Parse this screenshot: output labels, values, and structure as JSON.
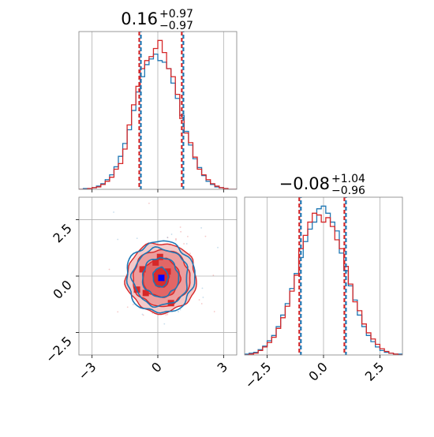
{
  "colors": {
    "series_a": "#1f77b4",
    "series_b": "#d62728",
    "marker_center": "#0000ff",
    "grid": "#b0b0b0",
    "frame": "#000000"
  },
  "chart_data": [
    {
      "type": "histogram",
      "panel": "top-left (x parameter marginal)",
      "title": {
        "value": "0.16",
        "upper": "+0.97",
        "lower": "−0.97"
      },
      "xlim": [
        -3.6,
        3.6
      ],
      "quantile_lines_x": [
        -0.81,
        0.16,
        1.13
      ],
      "grid": true,
      "series": [
        {
          "color": "#1f77b4",
          "bin_edges": [
            -3.6,
            -3.4,
            -3.2,
            -3.0,
            -2.8,
            -2.6,
            -2.4,
            -2.2,
            -2.0,
            -1.8,
            -1.6,
            -1.4,
            -1.2,
            -1.0,
            -0.8,
            -0.6,
            -0.4,
            -0.2,
            0.0,
            0.2,
            0.4,
            0.6,
            0.8,
            1.0,
            1.2,
            1.4,
            1.6,
            1.8,
            2.0,
            2.2,
            2.4,
            2.6,
            2.8,
            3.0,
            3.2,
            3.4,
            3.6
          ],
          "values": [
            0,
            1,
            1,
            2,
            4,
            7,
            12,
            18,
            28,
            41,
            57,
            74,
            98,
            121,
            140,
            155,
            162,
            168,
            160,
            158,
            150,
            132,
            113,
            92,
            72,
            55,
            38,
            27,
            17,
            10,
            6,
            3,
            2,
            1,
            0,
            0
          ]
        },
        {
          "color": "#d62728",
          "bin_edges": [
            -3.6,
            -3.4,
            -3.2,
            -3.0,
            -2.8,
            -2.6,
            -2.4,
            -2.2,
            -2.0,
            -1.8,
            -1.6,
            -1.4,
            -1.2,
            -1.0,
            -0.8,
            -0.6,
            -0.4,
            -0.2,
            0.0,
            0.2,
            0.4,
            0.6,
            0.8,
            1.0,
            1.2,
            1.4,
            1.6,
            1.8,
            2.0,
            2.2,
            2.4,
            2.6,
            2.8,
            3.0,
            3.2,
            3.4,
            3.6
          ],
          "values": [
            0,
            0,
            1,
            2,
            3,
            6,
            10,
            15,
            25,
            32,
            50,
            80,
            105,
            128,
            150,
            160,
            165,
            175,
            185,
            170,
            150,
            140,
            118,
            88,
            70,
            58,
            40,
            25,
            18,
            12,
            7,
            4,
            2,
            1,
            0,
            0
          ]
        }
      ]
    },
    {
      "type": "contour",
      "panel": "bottom-left (joint x vs y)",
      "xlim": [
        -3.6,
        3.6
      ],
      "ylim": [
        -3.5,
        3.5
      ],
      "x_ticks": [
        -3,
        0,
        3
      ],
      "x_tick_labels": [
        "−3",
        "0",
        "3"
      ],
      "y_ticks": [
        -2.5,
        0.0,
        2.5
      ],
      "y_tick_labels": [
        "−2.5",
        "0.0",
        "2.5"
      ],
      "grid": true,
      "levels_sigma_x": [
        0.35,
        0.85,
        1.3,
        1.6
      ],
      "levels_sigma_y": [
        0.42,
        0.85,
        1.25,
        1.55
      ],
      "series": [
        {
          "color": "#1f77b4",
          "center": [
            0.12,
            -0.05
          ],
          "filled": false
        },
        {
          "color": "#d62728",
          "center": [
            0.16,
            -0.08
          ],
          "filled": true
        }
      ],
      "center_marker": {
        "x": 0.16,
        "y": -0.08,
        "color": "#0000ff"
      }
    },
    {
      "type": "histogram",
      "panel": "bottom-right (y parameter marginal)",
      "title": {
        "value": "−0.08",
        "upper": "+1.04",
        "lower": "−0.96"
      },
      "xlim": [
        -3.5,
        3.5
      ],
      "x_ticks": [
        -2.5,
        0.0,
        2.5
      ],
      "x_tick_labels": [
        "−2.5",
        "0.0",
        "2.5"
      ],
      "quantile_lines_x": [
        -1.04,
        -0.08,
        0.96
      ],
      "grid": true,
      "series": [
        {
          "color": "#1f77b4",
          "bin_edges": [
            -3.5,
            -3.3,
            -3.1,
            -2.9,
            -2.7,
            -2.5,
            -2.3,
            -2.1,
            -1.9,
            -1.7,
            -1.5,
            -1.3,
            -1.1,
            -0.9,
            -0.7,
            -0.5,
            -0.3,
            -0.1,
            0.1,
            0.3,
            0.5,
            0.7,
            0.9,
            1.1,
            1.3,
            1.5,
            1.7,
            1.9,
            2.1,
            2.3,
            2.5,
            2.7,
            2.9,
            3.1,
            3.3,
            3.5
          ],
          "values": [
            1,
            2,
            3,
            6,
            10,
            16,
            22,
            32,
            45,
            58,
            75,
            92,
            110,
            128,
            142,
            150,
            165,
            168,
            160,
            150,
            140,
            115,
            95,
            78,
            62,
            45,
            32,
            22,
            15,
            9,
            5,
            3,
            2,
            1,
            1
          ]
        },
        {
          "color": "#d62728",
          "bin_edges": [
            -3.5,
            -3.3,
            -3.1,
            -2.9,
            -2.7,
            -2.5,
            -2.3,
            -2.1,
            -1.9,
            -1.7,
            -1.5,
            -1.3,
            -1.1,
            -0.9,
            -0.7,
            -0.5,
            -0.3,
            -0.1,
            0.1,
            0.3,
            0.5,
            0.7,
            0.9,
            1.1,
            1.3,
            1.5,
            1.7,
            1.9,
            2.1,
            2.3,
            2.5,
            2.7,
            2.9,
            3.1,
            3.3,
            3.5
          ],
          "values": [
            0,
            1,
            2,
            5,
            9,
            14,
            20,
            30,
            42,
            55,
            72,
            90,
            120,
            135,
            150,
            160,
            158,
            150,
            155,
            145,
            130,
            120,
            100,
            80,
            60,
            50,
            35,
            25,
            18,
            12,
            7,
            4,
            2,
            1,
            0
          ]
        }
      ]
    }
  ]
}
